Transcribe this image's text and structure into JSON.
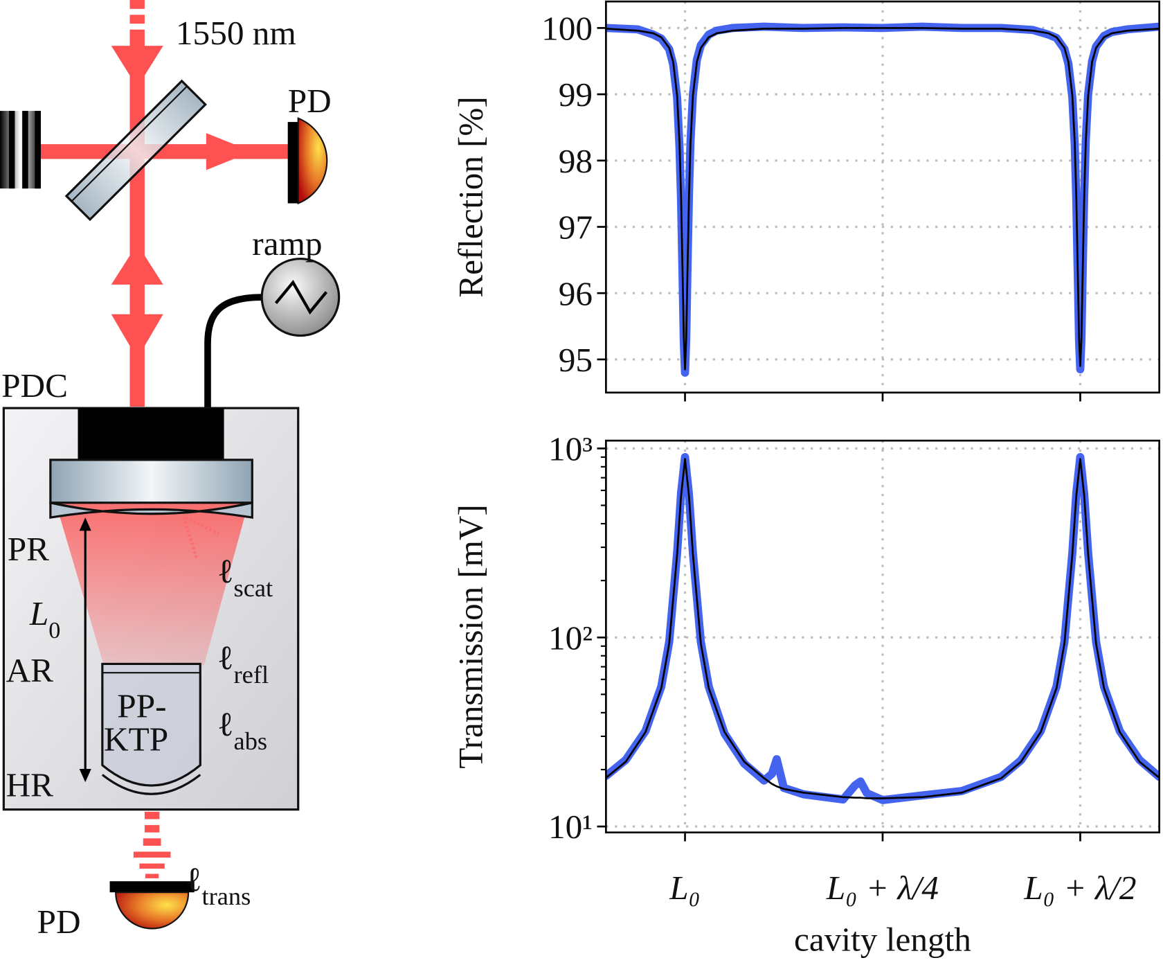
{
  "diagram": {
    "laser": "1550 nm",
    "detector_refl": "PD",
    "ramp": "ramp",
    "cavity": "PDC",
    "coupler": "PR",
    "length": {
      "symbol": "L",
      "sub": "0"
    },
    "crystal_front": "AR",
    "crystal_back": "HR",
    "crystal": [
      "PP-",
      "KTP"
    ],
    "loss_scat": {
      "symbol": "ℓ",
      "sub": "scat"
    },
    "loss_refl": {
      "symbol": "ℓ",
      "sub": "refl"
    },
    "loss_abs": {
      "symbol": "ℓ",
      "sub": "abs"
    },
    "loss_trans": {
      "symbol": "ℓ",
      "sub": "trans"
    },
    "detector_trans": "PD"
  },
  "chart_data": [
    {
      "type": "line",
      "ylabel": "Reflection [%]",
      "grid": true,
      "xlim": [
        -0.1,
        0.6
      ],
      "xticks": [
        0,
        0.25,
        0.5
      ],
      "ylim": [
        94.5,
        100.4
      ],
      "yticks": [
        95,
        96,
        97,
        98,
        99,
        100
      ],
      "x": [
        -0.1,
        -0.06,
        -0.04,
        -0.03,
        -0.02,
        -0.015,
        -0.01,
        -0.007,
        -0.005,
        -0.003,
        -0.0015,
        0,
        0.0015,
        0.003,
        0.005,
        0.007,
        0.01,
        0.015,
        0.02,
        0.03,
        0.04,
        0.06,
        0.1,
        0.15,
        0.2,
        0.25,
        0.3,
        0.35,
        0.4,
        0.44,
        0.46,
        0.47,
        0.48,
        0.485,
        0.49,
        0.493,
        0.495,
        0.497,
        0.4985,
        0.5,
        0.5015,
        0.503,
        0.505,
        0.507,
        0.51,
        0.515,
        0.52,
        0.53,
        0.54,
        0.56,
        0.6
      ],
      "series": [
        {
          "color": "#4463ee",
          "values": [
            100.0,
            99.98,
            99.9,
            99.84,
            99.68,
            99.45,
            98.95,
            98.2,
            97.4,
            96.2,
            95.25,
            94.8,
            95.3,
            96.3,
            97.5,
            98.3,
            99.0,
            99.52,
            99.74,
            99.9,
            99.96,
            100.0,
            100.02,
            100.0,
            100.01,
            100.0,
            100.02,
            100.0,
            100.0,
            99.97,
            99.9,
            99.85,
            99.68,
            99.46,
            98.95,
            98.25,
            97.4,
            96.2,
            95.28,
            94.85,
            95.3,
            96.28,
            97.48,
            98.3,
            99.0,
            99.5,
            99.72,
            99.88,
            99.94,
            99.98,
            100.02
          ]
        },
        {
          "color": "#000000",
          "values": [
            99.99,
            99.96,
            99.92,
            99.86,
            99.7,
            99.49,
            98.98,
            98.28,
            97.45,
            96.25,
            95.32,
            94.85,
            95.32,
            96.25,
            97.45,
            98.28,
            98.98,
            99.49,
            99.7,
            99.86,
            99.92,
            99.96,
            99.99,
            99.99,
            100,
            100,
            100,
            99.99,
            99.99,
            99.96,
            99.92,
            99.86,
            99.7,
            99.49,
            98.98,
            98.28,
            97.45,
            96.25,
            95.32,
            94.9,
            95.32,
            96.25,
            97.45,
            98.28,
            98.98,
            99.49,
            99.7,
            99.86,
            99.92,
            99.96,
            99.99
          ]
        }
      ]
    },
    {
      "type": "line",
      "ylabel": "Transmission [mV]",
      "xlabel": "cavity length",
      "grid": true,
      "log_y": true,
      "xlim": [
        -0.1,
        0.6
      ],
      "xticks": [
        {
          "value": 0,
          "label": "L₀"
        },
        {
          "value": 0.25,
          "label": "L₀ + λ/4"
        },
        {
          "value": 0.5,
          "label": "L₀ + λ/2"
        }
      ],
      "ylim": [
        9.3,
        1100
      ],
      "yticks": [
        {
          "value": 10,
          "label": "10¹"
        },
        {
          "value": 100,
          "label": "10²"
        },
        {
          "value": 1000,
          "label": "10³"
        }
      ],
      "minor_yticks": [
        20,
        30,
        40,
        50,
        60,
        70,
        80,
        90,
        200,
        300,
        400,
        500,
        600,
        700,
        800,
        900
      ],
      "x": [
        -0.1,
        -0.075,
        -0.05,
        -0.03,
        -0.02,
        -0.01,
        -0.005,
        0,
        0.005,
        0.01,
        0.02,
        0.03,
        0.05,
        0.075,
        0.1,
        0.11,
        0.116,
        0.125,
        0.15,
        0.2,
        0.215,
        0.222,
        0.23,
        0.25,
        0.3,
        0.35,
        0.4,
        0.425,
        0.45,
        0.47,
        0.48,
        0.49,
        0.495,
        0.5,
        0.505,
        0.51,
        0.52,
        0.53,
        0.55,
        0.575,
        0.6
      ],
      "series": [
        {
          "color": "#4463ee",
          "values": [
            18.5,
            22.5,
            32,
            55,
            95,
            280,
            580,
            900,
            570,
            280,
            95,
            55,
            31,
            21.5,
            17.5,
            19,
            22.7,
            16,
            14.8,
            13.9,
            16.5,
            17.3,
            15,
            13.8,
            14.6,
            15.4,
            18.3,
            22.4,
            32,
            55,
            95,
            280,
            580,
            900,
            575,
            280,
            95,
            55,
            32,
            22.5,
            18.3
          ]
        },
        {
          "color": "#000000",
          "values": [
            18.1,
            22,
            31.6,
            54,
            93,
            275,
            562,
            880,
            562,
            275,
            93,
            54,
            31.6,
            22,
            18,
            16.8,
            16.3,
            15.8,
            15.1,
            14.3,
            14.2,
            14.2,
            14.1,
            14.1,
            14.3,
            15.1,
            18,
            22,
            31.6,
            54,
            93,
            275,
            562,
            880,
            562,
            275,
            93,
            54,
            31.6,
            22,
            18.1
          ]
        }
      ]
    }
  ]
}
